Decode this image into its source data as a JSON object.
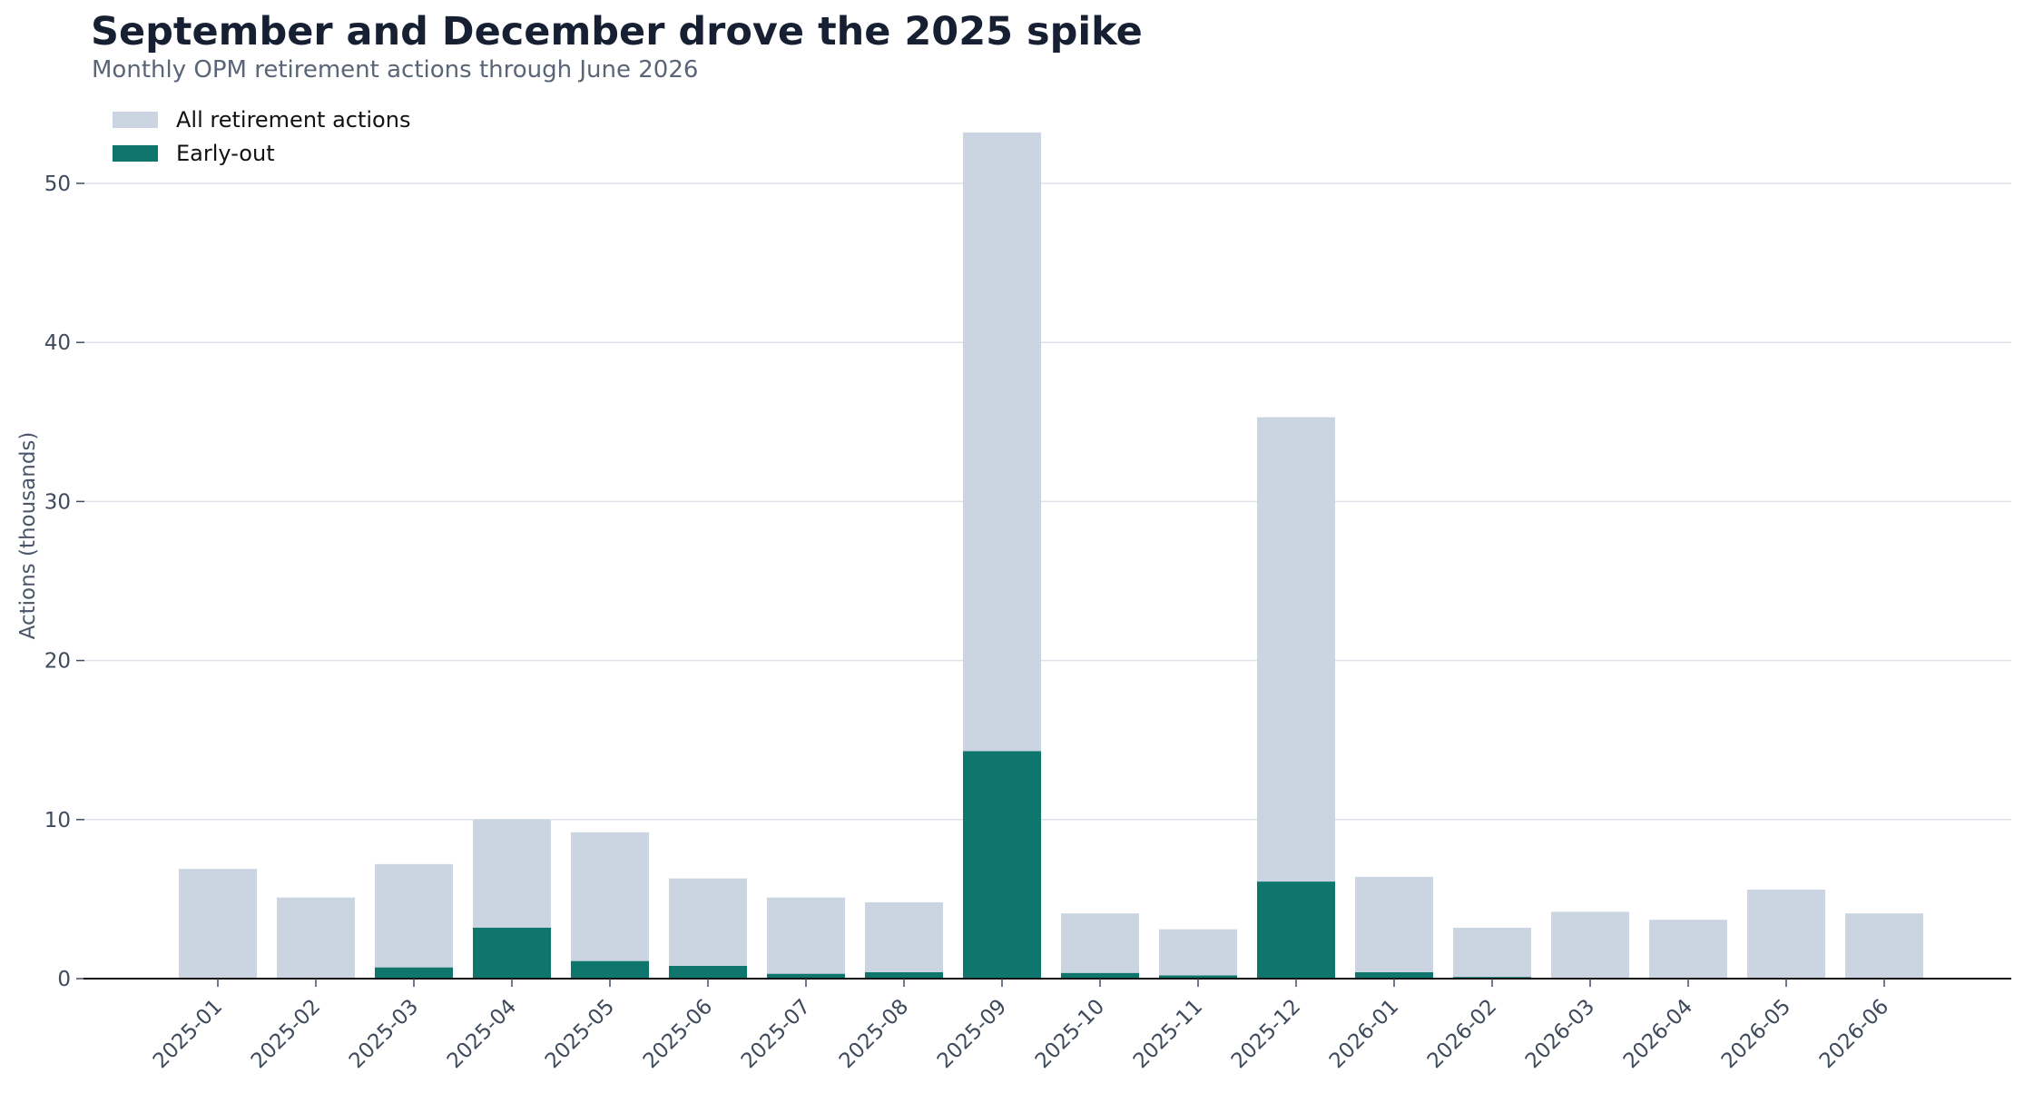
{
  "chart_data": {
    "type": "bar",
    "title": "September and December drove the 2025 spike",
    "subtitle": "Monthly OPM retirement actions through June 2026",
    "xlabel": "",
    "ylabel": "Actions (thousands)",
    "ylim": [
      0,
      54
    ],
    "yticks": [
      0,
      10,
      20,
      30,
      40,
      50
    ],
    "grid": "horizontal",
    "legend_position": "top-left",
    "bar_layout": "overlaid",
    "categories": [
      "2025-01",
      "2025-02",
      "2025-03",
      "2025-04",
      "2025-05",
      "2025-06",
      "2025-07",
      "2025-08",
      "2025-09",
      "2025-10",
      "2025-11",
      "2025-12",
      "2026-01",
      "2026-02",
      "2026-03",
      "2026-04",
      "2026-05",
      "2026-06"
    ],
    "series": [
      {
        "name": "All retirement actions",
        "color": "#cbd5e1",
        "values": [
          6.9,
          5.1,
          7.2,
          10.0,
          9.2,
          6.3,
          5.1,
          4.8,
          53.2,
          4.1,
          3.1,
          35.3,
          6.4,
          3.2,
          4.2,
          3.7,
          5.6,
          4.1
        ]
      },
      {
        "name": "Early-out",
        "color": "#0f766e",
        "values": [
          0.0,
          0.0,
          0.7,
          3.2,
          1.1,
          0.8,
          0.3,
          0.4,
          14.3,
          0.35,
          0.2,
          6.1,
          0.4,
          0.1,
          0.0,
          0.0,
          0.0,
          0.0
        ]
      }
    ]
  },
  "colors": {
    "gridline": "#dde1ea",
    "axis_line": "#111111",
    "tick_label": "#3f4a5c"
  }
}
